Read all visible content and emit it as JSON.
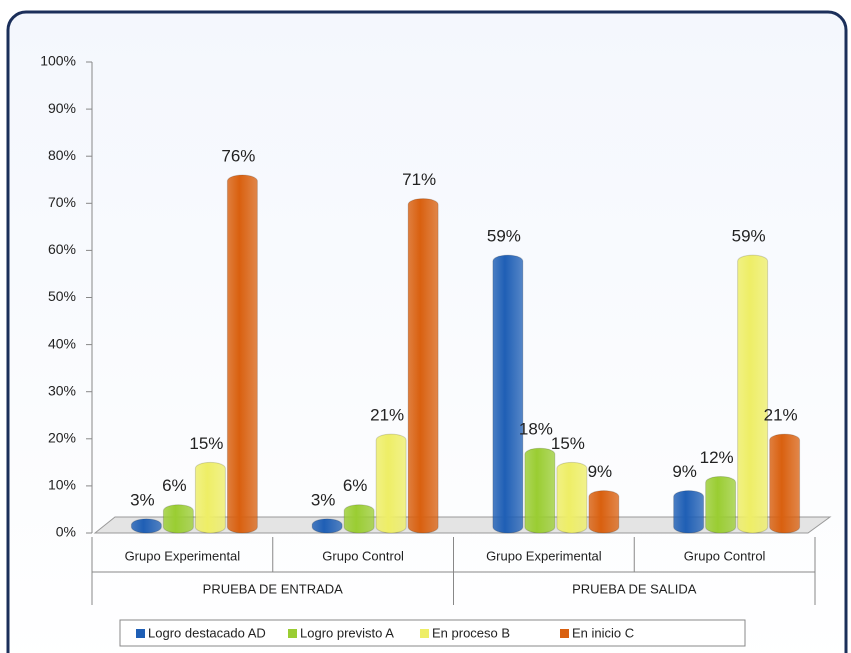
{
  "chart_data": {
    "type": "bar",
    "categories": [
      "Grupo Experimental",
      "Grupo Control",
      "Grupo Experimental",
      "Grupo Control"
    ],
    "groups": [
      "PRUEBA DE ENTRADA",
      "PRUEBA DE SALIDA"
    ],
    "series": [
      {
        "name": "Logro destacado AD",
        "color": "#1f5fb5",
        "values": [
          3,
          3,
          59,
          9
        ],
        "value_labels": [
          "3%",
          "3%",
          "59%",
          "9%"
        ]
      },
      {
        "name": "Logro previsto A",
        "color": "#9acd32",
        "values": [
          6,
          6,
          18,
          12
        ],
        "value_labels": [
          "6%",
          "6%",
          "18%",
          "12%"
        ]
      },
      {
        "name": "En proceso B",
        "color": "#eeee66",
        "values": [
          15,
          21,
          15,
          59
        ],
        "value_labels": [
          "15%",
          "21%",
          "15%",
          "59%"
        ]
      },
      {
        "name": "En inicio C",
        "color": "#d9600f",
        "values": [
          76,
          71,
          9,
          21
        ],
        "value_labels": [
          "76%",
          "71%",
          "9%",
          "21%"
        ]
      }
    ],
    "ylim": [
      0,
      100
    ],
    "yticks": [
      {
        "value": 0,
        "label": "0%"
      },
      {
        "value": 10,
        "label": "10%"
      },
      {
        "value": 20,
        "label": "20%"
      },
      {
        "value": 30,
        "label": "30%"
      },
      {
        "value": 40,
        "label": "40%"
      },
      {
        "value": 50,
        "label": "50%"
      },
      {
        "value": 60,
        "label": "60%"
      },
      {
        "value": 70,
        "label": "70%"
      },
      {
        "value": 80,
        "label": "80%"
      },
      {
        "value": 90,
        "label": "90%"
      },
      {
        "value": 100,
        "label": "100%"
      }
    ],
    "legend": "bottom"
  }
}
